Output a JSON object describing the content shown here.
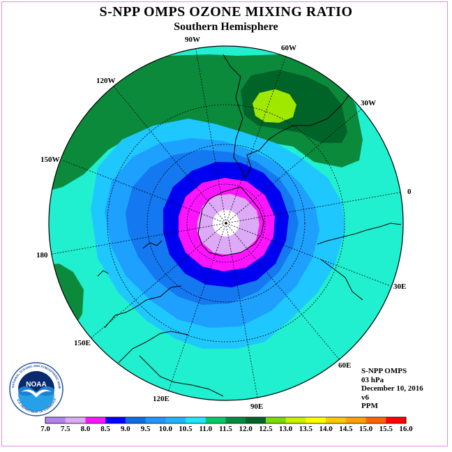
{
  "header": {
    "title": "S-NPP OMPS OZONE MIXING RATIO",
    "subtitle": "Southern Hemisphere"
  },
  "map": {
    "projection": "south-polar-stereographic",
    "longitude_labels": [
      "90W",
      "60W",
      "30W",
      "120W",
      "150W",
      "0",
      "180",
      "30E",
      "60E",
      "150E",
      "120E",
      "90E"
    ],
    "highest_region_color": "#a0e800",
    "lowest_region_color": "#ffffff"
  },
  "info": {
    "instrument": "S-NPP OMPS",
    "level": "03 hPa",
    "date": "December 10, 2016",
    "version": "v6",
    "units": "PPM"
  },
  "color_scale": {
    "labels": [
      "7.0",
      "7.5",
      "8.0",
      "8.5",
      "9.0",
      "9.5",
      "10.0",
      "10.5",
      "11.0",
      "11.5",
      "12.0",
      "12.5",
      "13.0",
      "13.5",
      "14.0",
      "14.5",
      "15.0",
      "15.5",
      "16.0"
    ],
    "colors": [
      "#b482f0",
      "#dcaaf6",
      "#ff14ff",
      "#0000ff",
      "#0c6ee6",
      "#1e96ff",
      "#1eb4ff",
      "#1ee6ff",
      "#00cc66",
      "#008c3c",
      "#006428",
      "#78dc00",
      "#c8f000",
      "#ffff00",
      "#ffc800",
      "#ffa000",
      "#ff6400",
      "#ff0000",
      "#ff8c46"
    ]
  },
  "logo": {
    "text": "NOAA",
    "ring_text": "NATIONAL OCEANIC AND ATMOSPHERIC ADMINISTRATION",
    "bottom_text": "U.S. DEPARTMENT OF COMMERCE"
  }
}
